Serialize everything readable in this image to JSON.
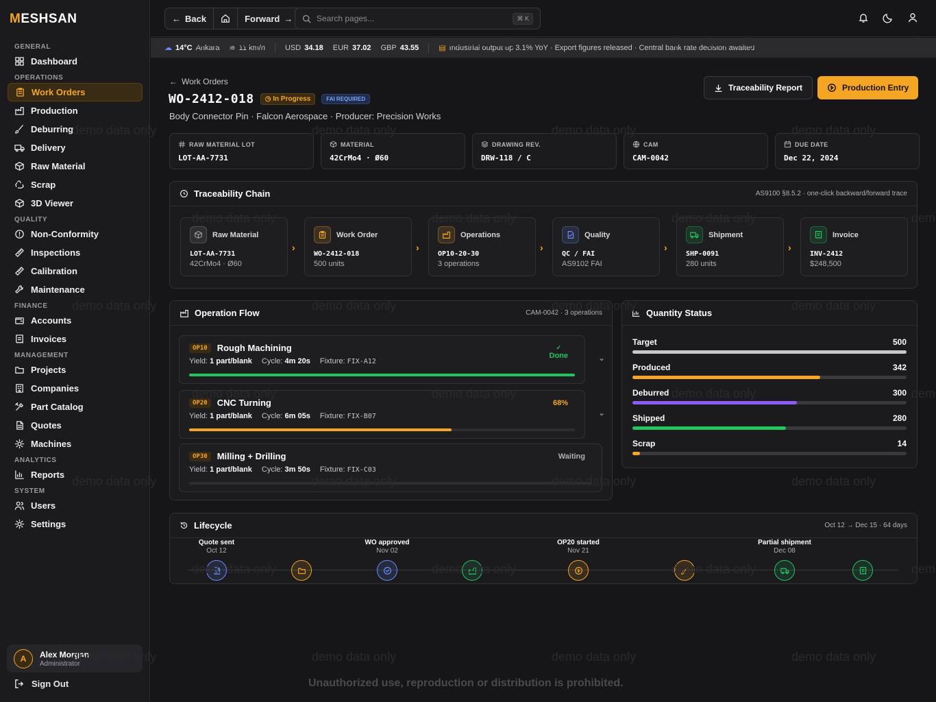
{
  "brand": {
    "first": "M",
    "rest": "ESHSAN"
  },
  "sidebar": {
    "sections": [
      {
        "title": "GENERAL",
        "items": [
          {
            "label": "Dashboard",
            "icon": "grid-icon"
          }
        ]
      },
      {
        "title": "OPERATIONS",
        "items": [
          {
            "label": "Work Orders",
            "icon": "clipboard-icon",
            "active": true
          },
          {
            "label": "Production",
            "icon": "factory-icon"
          },
          {
            "label": "Deburring",
            "icon": "brush-icon"
          },
          {
            "label": "Delivery",
            "icon": "truck-icon"
          },
          {
            "label": "Raw Material",
            "icon": "box-icon"
          },
          {
            "label": "Scrap",
            "icon": "recycle-icon"
          },
          {
            "label": "3D Viewer",
            "icon": "cube-icon"
          }
        ]
      },
      {
        "title": "QUALITY",
        "items": [
          {
            "label": "Non-Conformity",
            "icon": "alert-circle-icon"
          },
          {
            "label": "Inspections",
            "icon": "ruler-icon"
          },
          {
            "label": "Calibration",
            "icon": "ruler-icon"
          },
          {
            "label": "Maintenance",
            "icon": "wrench-icon"
          }
        ]
      },
      {
        "title": "FINANCE",
        "items": [
          {
            "label": "Accounts",
            "icon": "wallet-icon"
          },
          {
            "label": "Invoices",
            "icon": "receipt-icon"
          }
        ]
      },
      {
        "title": "MANAGEMENT",
        "items": [
          {
            "label": "Projects",
            "icon": "folder-icon"
          },
          {
            "label": "Companies",
            "icon": "building-icon"
          },
          {
            "label": "Part Catalog",
            "icon": "tools-icon"
          },
          {
            "label": "Quotes",
            "icon": "document-icon"
          },
          {
            "label": "Machines",
            "icon": "cog-icon"
          }
        ]
      },
      {
        "title": "ANALYTICS",
        "items": [
          {
            "label": "Reports",
            "icon": "bar-chart-icon"
          }
        ]
      },
      {
        "title": "SYSTEM",
        "items": [
          {
            "label": "Users",
            "icon": "users-icon"
          },
          {
            "label": "Settings",
            "icon": "settings-icon"
          }
        ]
      }
    ],
    "user": {
      "initial": "A",
      "name": "Alex Morgan",
      "role": "Administrator"
    },
    "signout": "Sign Out"
  },
  "topbar": {
    "back": "Back",
    "forward": "Forward",
    "search_placeholder": "Search pages...",
    "shortcut": "⌘ K"
  },
  "ticker": {
    "temp": "14°C",
    "city": "Ankara",
    "wind": "11 km/h",
    "fx": [
      {
        "code": "USD",
        "value": "34.18"
      },
      {
        "code": "EUR",
        "value": "37.02"
      },
      {
        "code": "GBP",
        "value": "43.55"
      }
    ],
    "news": "Industrial output up 3.1% YoY · Export figures released · Central bank rate decision awaited"
  },
  "header": {
    "breadcrumb": "Work Orders",
    "wo_id": "WO-2412-018",
    "status": "In Progress",
    "fai": "FAI REQUIRED",
    "subtitle": "Body Connector Pin · Falcon Aerospace · Producer: Precision Works",
    "btn_report": "Traceability Report",
    "btn_entry": "Production Entry"
  },
  "info_cards": [
    {
      "label": "RAW MATERIAL LOT",
      "value": "LOT-AA-7731",
      "icon": "hash-icon"
    },
    {
      "label": "MATERIAL",
      "value": "42CrMo4 · Ø60",
      "icon": "box-icon"
    },
    {
      "label": "DRAWING REV.",
      "value": "DRW-118 / C",
      "icon": "layers-icon"
    },
    {
      "label": "CAM",
      "value": "CAM-0042",
      "icon": "globe-icon"
    },
    {
      "label": "DUE DATE",
      "value": "Dec 22, 2024",
      "icon": "calendar-icon"
    }
  ],
  "traceability": {
    "title": "Traceability Chain",
    "note": "AS9100 §8.5.2 · one-click backward/forward trace",
    "nodes": [
      {
        "title": "Raw Material",
        "value": "LOT-AA-7731",
        "sub": "42CrMo4 · Ø60",
        "color": "#9a9aa0",
        "icon": "box-icon"
      },
      {
        "title": "Work Order",
        "value": "WO-2412-018",
        "sub": "500 units",
        "color": "#f5a524",
        "icon": "clipboard-icon"
      },
      {
        "title": "Operations",
        "value": "OP10-20-30",
        "sub": "3 operations",
        "color": "#f5a524",
        "icon": "factory-icon"
      },
      {
        "title": "Quality",
        "value": "QC / FAI",
        "sub": "AS9102 FAI",
        "color": "#6b8cff",
        "icon": "check-doc-icon"
      },
      {
        "title": "Shipment",
        "value": "SHP-0091",
        "sub": "280 units",
        "color": "#22c55e",
        "icon": "truck-icon"
      },
      {
        "title": "Invoice",
        "value": "INV-2412",
        "sub": "$248,500",
        "color": "#22c55e",
        "icon": "receipt-icon"
      }
    ]
  },
  "operations": {
    "title": "Operation Flow",
    "note": "CAM-0042 · 3 operations",
    "yield_label": "Yield:",
    "cycle_label": "Cycle:",
    "fixture_label": "Fixture:",
    "items": [
      {
        "code": "OP10",
        "name": "Rough Machining",
        "yield": "1 part/blank",
        "cycle": "4m 20s",
        "fixture": "FIX-A12",
        "status": "Done",
        "progress": 1.0,
        "color": "#22c55e"
      },
      {
        "code": "OP20",
        "name": "CNC Turning",
        "yield": "1 part/blank",
        "cycle": "6m 05s",
        "fixture": "FIX-B07",
        "status": "68%",
        "progress": 0.68,
        "color": "#f5a524"
      },
      {
        "code": "OP30",
        "name": "Milling + Drilling",
        "yield": "1 part/blank",
        "cycle": "3m 50s",
        "fixture": "FIX-C03",
        "status": "Waiting",
        "progress": 0.0,
        "color": "#9a9aa0"
      }
    ]
  },
  "quantity": {
    "title": "Quantity Status",
    "rows": [
      {
        "label": "Target",
        "value": "500",
        "fraction": 1.0,
        "color": "#c8c8cc"
      },
      {
        "label": "Produced",
        "value": "342",
        "fraction": 0.684,
        "color": "#f5a524"
      },
      {
        "label": "Deburred",
        "value": "300",
        "fraction": 0.6,
        "color": "#8b5cf6"
      },
      {
        "label": "Shipped",
        "value": "280",
        "fraction": 0.56,
        "color": "#22c55e"
      },
      {
        "label": "Scrap",
        "value": "14",
        "fraction": 0.028,
        "color": "#f5a524"
      }
    ]
  },
  "lifecycle": {
    "title": "Lifecycle",
    "range": "Oct 12 → Dec 15 · 64 days",
    "events": [
      {
        "title": "Quote sent",
        "date": "Oct 12",
        "color": "#6b8cff",
        "icon": "document-icon"
      },
      {
        "title": "",
        "date": "",
        "color": "#f5a524",
        "icon": "folder-icon"
      },
      {
        "title": "WO approved",
        "date": "Nov 02",
        "color": "#6b8cff",
        "icon": "check-circle-icon"
      },
      {
        "title": "",
        "date": "",
        "color": "#22c55e",
        "icon": "factory-icon"
      },
      {
        "title": "OP20 started",
        "date": "Nov 21",
        "color": "#f5a524",
        "icon": "play-icon"
      },
      {
        "title": "",
        "date": "",
        "color": "#f5a524",
        "icon": "brush-icon"
      },
      {
        "title": "Partial shipment",
        "date": "Dec 08",
        "color": "#22c55e",
        "icon": "truck-icon"
      },
      {
        "title": "",
        "date": "",
        "color": "#22c55e",
        "icon": "receipt-icon"
      }
    ]
  },
  "watermark": "demo data only",
  "legal": "Unauthorized use, reproduction or distribution is prohibited."
}
